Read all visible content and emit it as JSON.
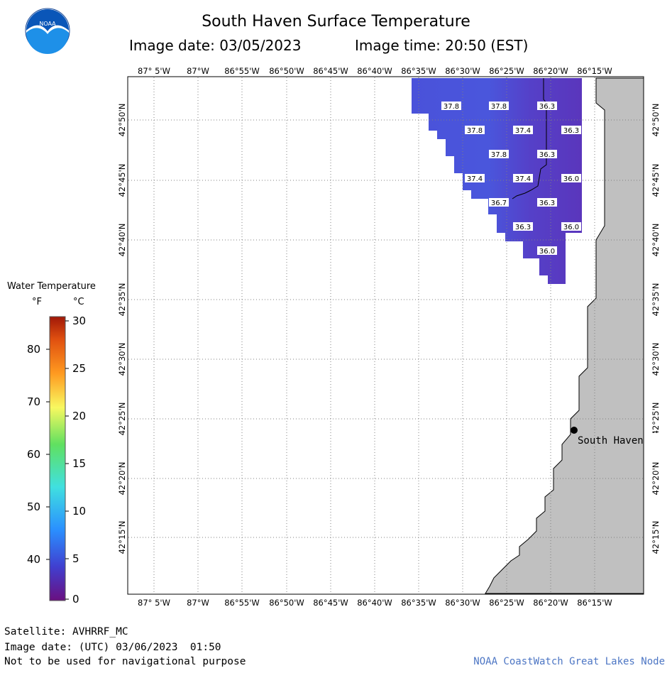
{
  "header": {
    "title": "South Haven Surface Temperature",
    "image_date_label": "Image date: 03/05/2023",
    "image_time_label": "Image time: 20:50 (EST)"
  },
  "logo": {
    "text": "NOAA"
  },
  "lon_labels": [
    "87° 5'W",
    "87°W",
    "86°55'W",
    "86°50'W",
    "86°45'W",
    "86°40'W",
    "86°35'W",
    "86°30'W",
    "86°25'W",
    "86°20'W",
    "86°15'W"
  ],
  "lat_labels": [
    "42°50'N",
    "42°45'N",
    "42°40'N",
    "42°35'N",
    "42°30'N",
    "42°25'N",
    "42°20'N",
    "42°15'N"
  ],
  "temperature_labels": [
    "37.8",
    "37.8",
    "36.3",
    "37.8",
    "37.4",
    "36.3",
    "37.8",
    "36.3",
    "37.4",
    "37.4",
    "36.0",
    "36.7",
    "36.3",
    "36.3",
    "36.0",
    "36.0"
  ],
  "place": {
    "name": "South Haven"
  },
  "legend": {
    "title": "Water Temperature",
    "unit_f": "°F",
    "unit_c": "°C",
    "f_ticks": [
      "80",
      "70",
      "60",
      "50",
      "40"
    ],
    "c_ticks": [
      "30",
      "25",
      "20",
      "15",
      "10",
      "5",
      "0"
    ]
  },
  "footer": {
    "satellite": "Satellite: AVHRRF_MC",
    "image_date_utc": "Image date: (UTC) 03/06/2023  01:50",
    "disclaimer": "Not to be used for navigational purpose",
    "credit": "NOAA CoastWatch Great Lakes Node"
  },
  "colors": {
    "land": "#c0c0c0",
    "water_warm": "#4a4fd6",
    "water_cold": "#5a3bc0",
    "grid": "#808080",
    "credit": "#4d76c4"
  }
}
